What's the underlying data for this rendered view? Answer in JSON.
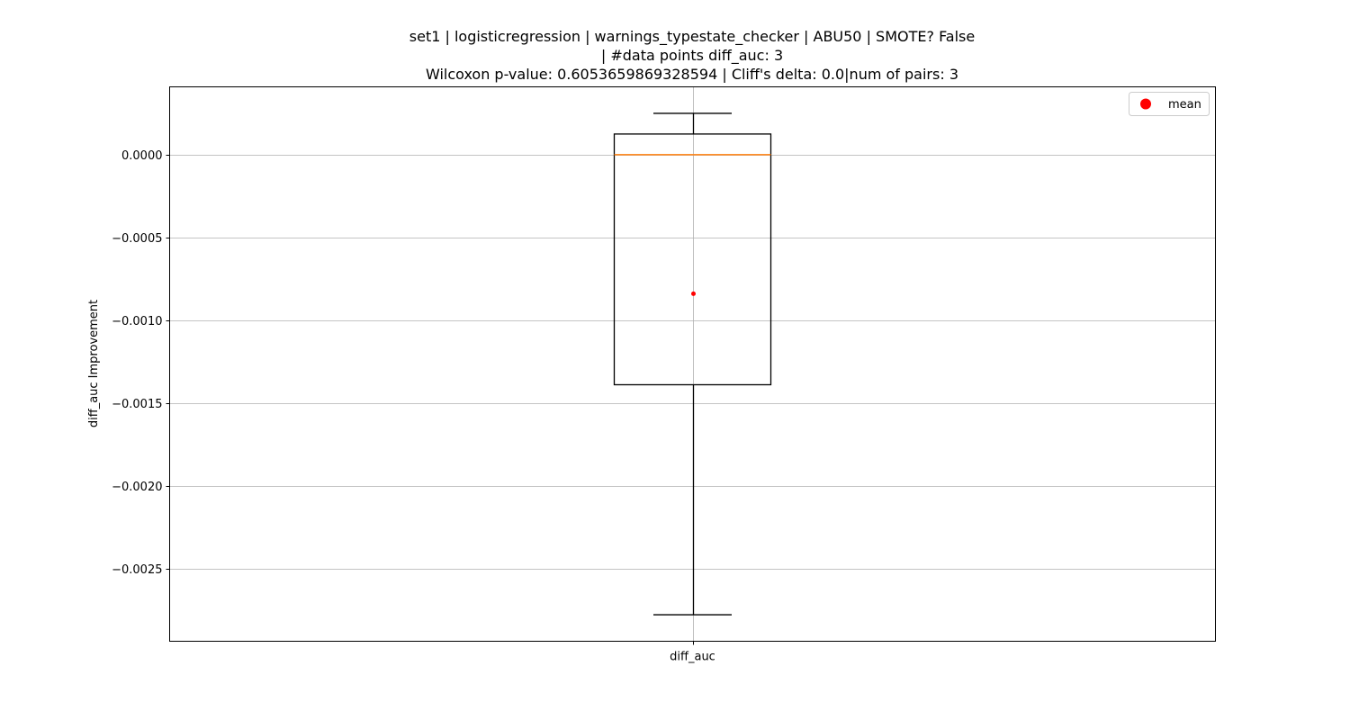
{
  "chart_data": {
    "type": "box",
    "title_lines": [
      "set1 | logisticregression | warnings_typestate_checker | ABU50 | SMOTE? False",
      "| #data points diff_auc: 3",
      "Wilcoxon p-value: 0.6053659869328594 | Cliff's delta: 0.0|num of pairs: 3"
    ],
    "xlabel": "",
    "ylabel": "diff_auc Improvement",
    "categories": [
      "diff_auc"
    ],
    "boxes": [
      {
        "name": "diff_auc",
        "whisker_low": -0.00278,
        "q1": -0.00139,
        "median": 0.0,
        "q3": 0.000125,
        "whisker_high": 0.00025,
        "mean": -0.00084
      }
    ],
    "yticks": [
      0.0,
      -0.0005,
      -0.001,
      -0.0015,
      -0.002,
      -0.0025
    ],
    "ytick_labels": [
      "0.0000",
      "−0.0005",
      "−0.0010",
      "−0.0015",
      "−0.0020",
      "−0.0025"
    ],
    "ylim": [
      -0.00294,
      0.00041
    ],
    "grid": true,
    "legend": {
      "position": "top-right",
      "entries": [
        {
          "label": "mean",
          "marker": "dot",
          "color": "#ff0000"
        }
      ]
    },
    "colors": {
      "median": "#ff7f0e",
      "mean": "#ff0000",
      "box": "#000000",
      "grid": "#b0b0b0"
    }
  }
}
